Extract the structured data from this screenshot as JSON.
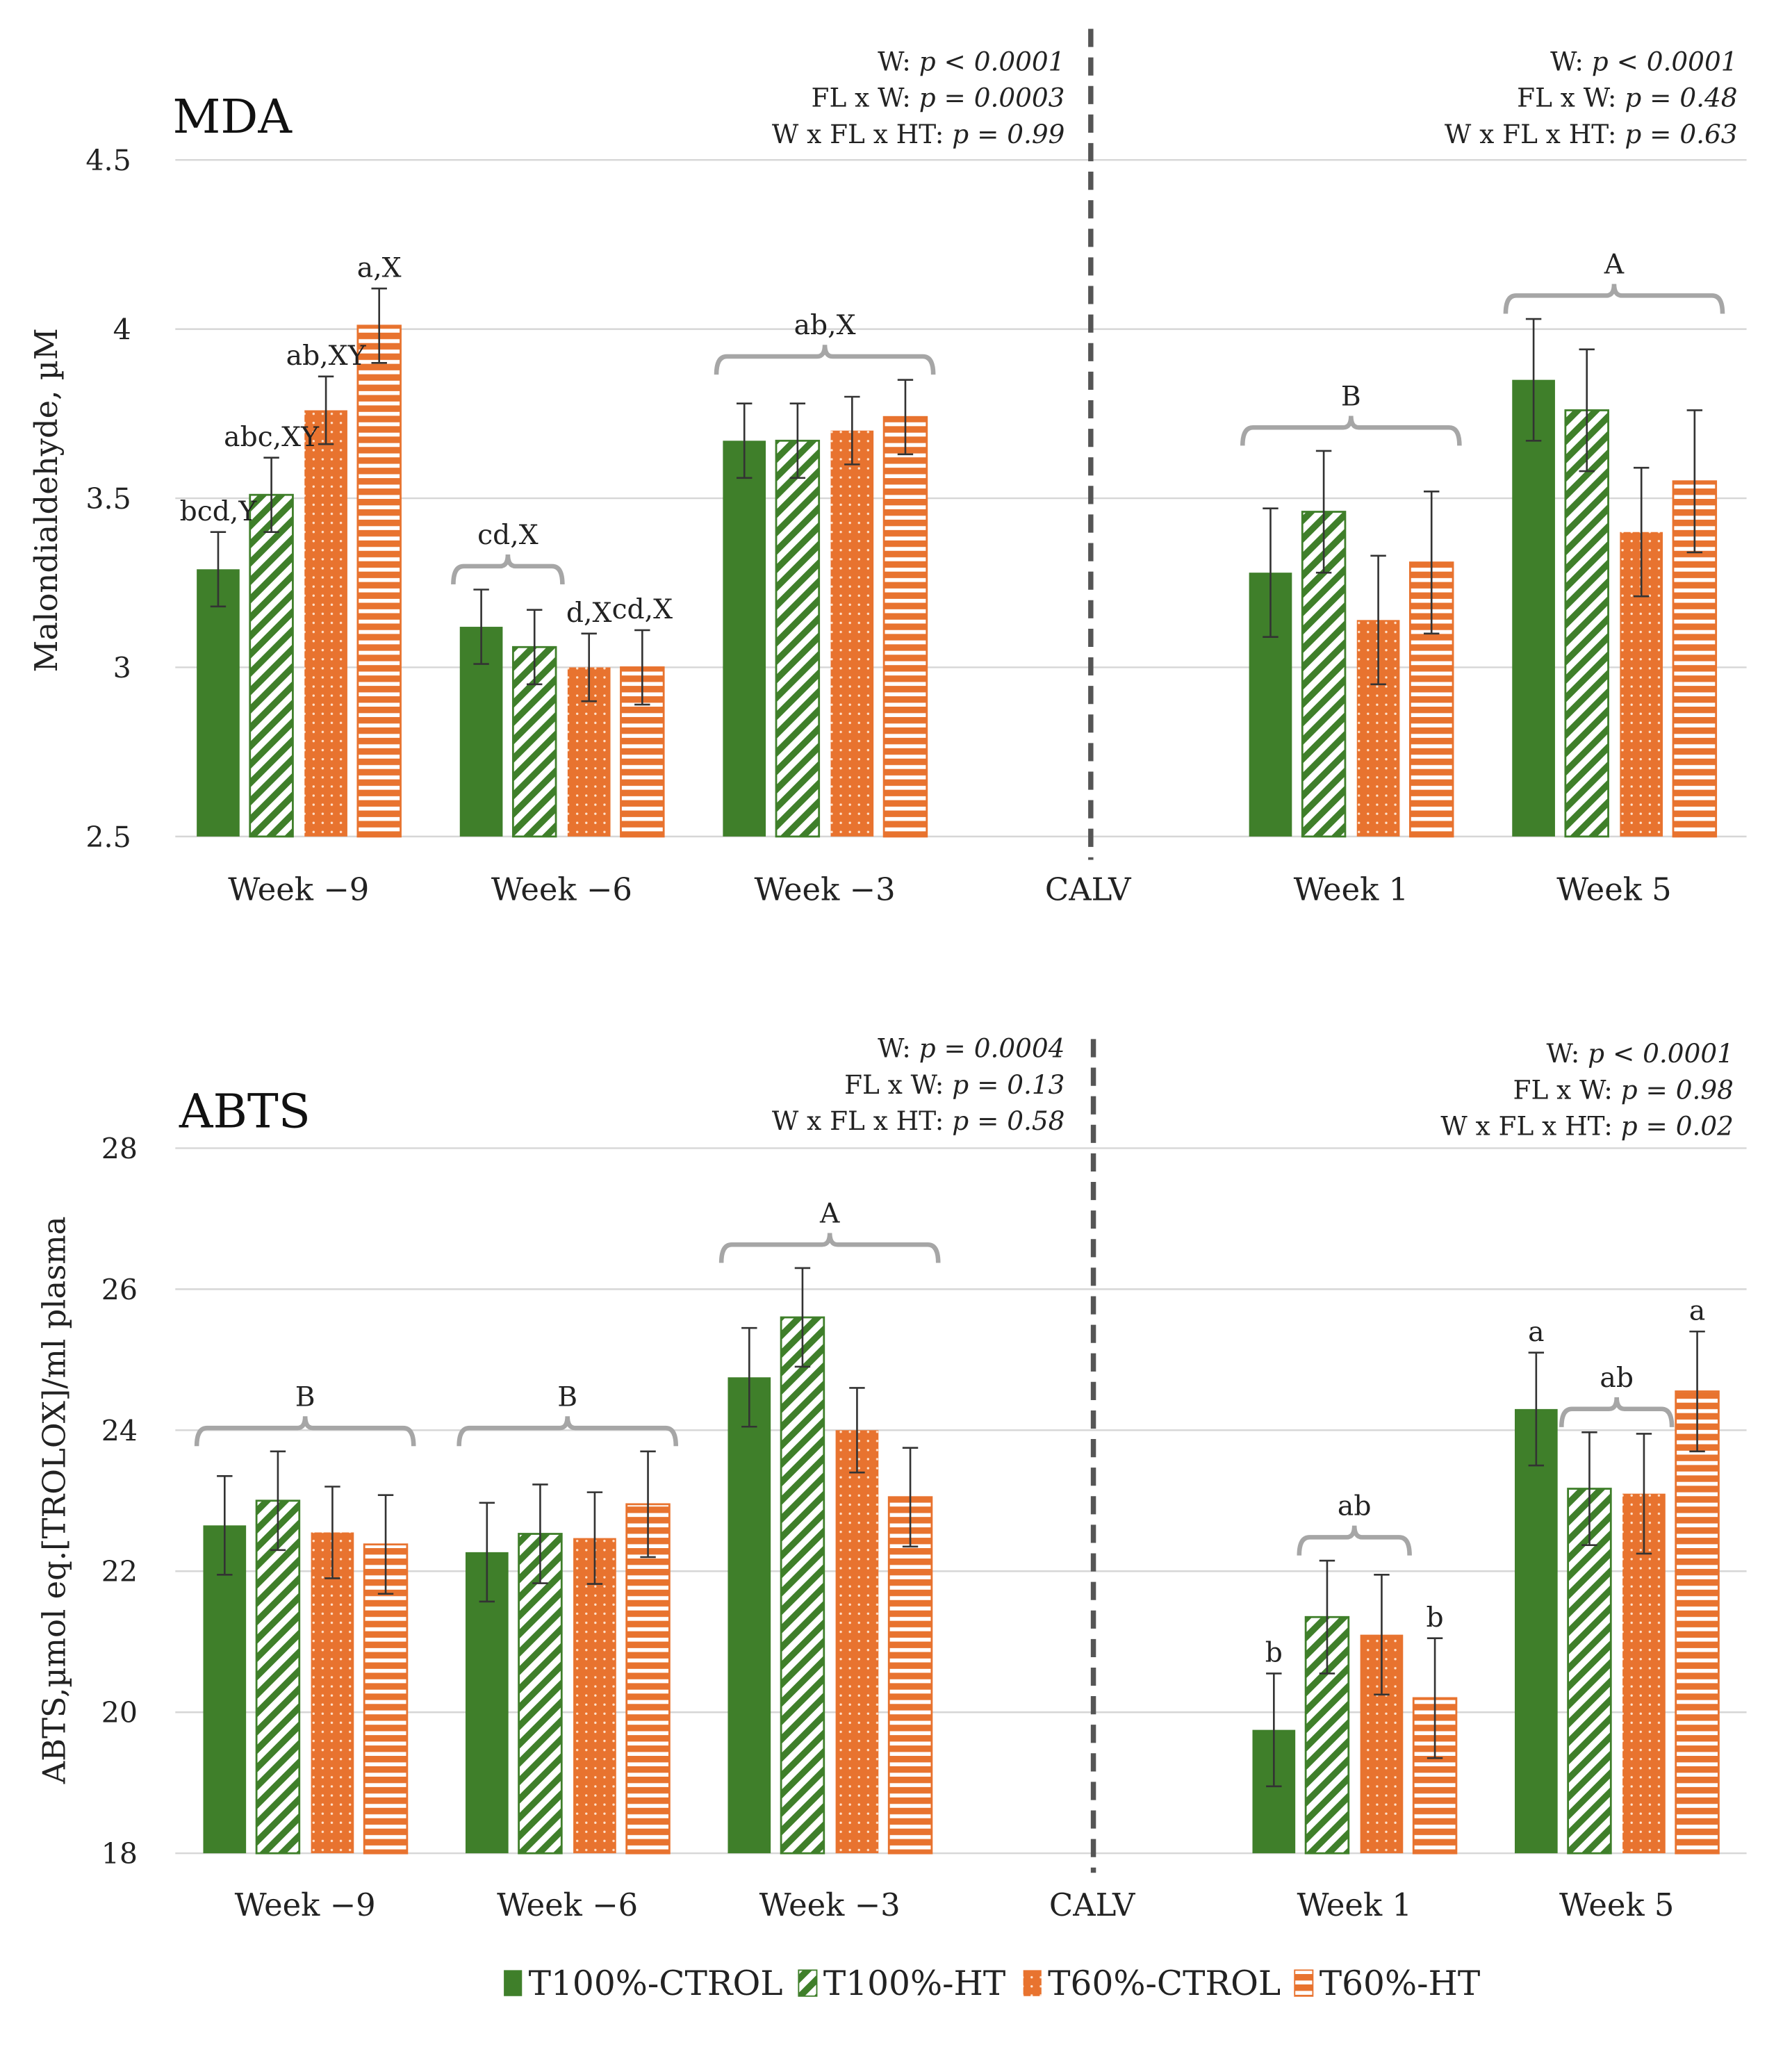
{
  "legend": [
    {
      "label": "T100%-CTROL",
      "color": "#3f7f2a",
      "pattern": "solid"
    },
    {
      "label": "T100%-HT",
      "color": "#3f7f2a",
      "pattern": "diagonal-stripes"
    },
    {
      "label": "T60%-CTROL",
      "color": "#e8732f",
      "pattern": "dots"
    },
    {
      "label": "T60%-HT",
      "color": "#e8732f",
      "pattern": "horizontal-stripes"
    }
  ],
  "chart_data": [
    {
      "type": "bar",
      "title": "MDA",
      "ylabel": "Malondialdehyde, µM",
      "ylim": [
        2.5,
        4.5
      ],
      "yticks": [
        "2.5",
        "3",
        "3.5",
        "4",
        "4.5"
      ],
      "grid": true,
      "categories": [
        "Week −9",
        "Week −6",
        "Week −3",
        "CALV",
        "Week 1",
        "Week 5"
      ],
      "series": [
        {
          "name": "T100%-CTROL",
          "values": [
            3.29,
            3.12,
            3.67,
            null,
            3.28,
            3.85
          ],
          "errors": [
            0.11,
            0.11,
            0.11,
            null,
            0.19,
            0.18
          ]
        },
        {
          "name": "T100%-HT",
          "values": [
            3.51,
            3.06,
            3.67,
            null,
            3.46,
            3.76
          ],
          "errors": [
            0.11,
            0.11,
            0.11,
            null,
            0.18,
            0.18
          ]
        },
        {
          "name": "T60%-CTROL",
          "values": [
            3.76,
            3.0,
            3.7,
            null,
            3.14,
            3.4
          ],
          "errors": [
            0.1,
            0.1,
            0.1,
            null,
            0.19,
            0.19
          ]
        },
        {
          "name": "T60%-HT",
          "values": [
            4.01,
            3.0,
            3.74,
            null,
            3.31,
            3.55
          ],
          "errors": [
            0.11,
            0.11,
            0.11,
            null,
            0.21,
            0.21
          ]
        }
      ],
      "annotations": [
        {
          "category": 0,
          "bars": [
            0
          ],
          "text": "bcd,Y"
        },
        {
          "category": 0,
          "bars": [
            1
          ],
          "text": "abc,XY"
        },
        {
          "category": 0,
          "bars": [
            2
          ],
          "text": "ab,XY"
        },
        {
          "category": 0,
          "bars": [
            3
          ],
          "text": "a,X"
        },
        {
          "category": 1,
          "bars": [
            0,
            1
          ],
          "text": "cd,X"
        },
        {
          "category": 1,
          "bars": [
            2
          ],
          "text": "d,X"
        },
        {
          "category": 1,
          "bars": [
            3
          ],
          "text": "cd,X"
        },
        {
          "category": 2,
          "bars": [
            0,
            1,
            2,
            3
          ],
          "text": "ab,X"
        },
        {
          "category": 4,
          "bars": [
            0,
            1,
            2,
            3
          ],
          "text": "B"
        },
        {
          "category": 5,
          "bars": [
            0,
            1,
            2,
            3
          ],
          "text": "A"
        }
      ],
      "stats": {
        "prepartum": [
          {
            "label": "W: ",
            "value": "p < 0.0001"
          },
          {
            "label": "FL x W: ",
            "value": "p = 0.0003"
          },
          {
            "label": "W x FL x HT: ",
            "value": "p = 0.99"
          }
        ],
        "postpartum": [
          {
            "label": "W: ",
            "value": "p < 0.0001"
          },
          {
            "label": "FL x W: ",
            "value": "p = 0.48"
          },
          {
            "label": "W x FL x HT: ",
            "value": "p = 0.63"
          }
        ]
      }
    },
    {
      "type": "bar",
      "title": "ABTS",
      "ylabel": "ABTS,µmol eq.[TROLOX]/ml plasma",
      "ylim": [
        18,
        28
      ],
      "yticks": [
        "18",
        "20",
        "22",
        "24",
        "26",
        "28"
      ],
      "grid": true,
      "categories": [
        "Week −9",
        "Week −6",
        "Week −3",
        "CALV",
        "Week 1",
        "Week 5"
      ],
      "series": [
        {
          "name": "T100%-CTROL",
          "values": [
            22.65,
            22.27,
            24.75,
            null,
            19.75,
            24.3
          ],
          "errors": [
            0.7,
            0.7,
            0.7,
            null,
            0.8,
            0.8
          ]
        },
        {
          "name": "T100%-HT",
          "values": [
            23.0,
            22.53,
            25.6,
            null,
            21.35,
            23.17
          ],
          "errors": [
            0.7,
            0.7,
            0.7,
            null,
            0.8,
            0.8
          ]
        },
        {
          "name": "T60%-CTROL",
          "values": [
            22.55,
            22.47,
            24.0,
            null,
            21.1,
            23.1
          ],
          "errors": [
            0.65,
            0.65,
            0.6,
            null,
            0.85,
            0.85
          ]
        },
        {
          "name": "T60%-HT",
          "values": [
            22.38,
            22.95,
            23.05,
            null,
            20.2,
            24.55
          ],
          "errors": [
            0.7,
            0.75,
            0.7,
            null,
            0.85,
            0.85
          ]
        }
      ],
      "annotations": [
        {
          "category": 0,
          "bars": [
            0,
            1,
            2,
            3
          ],
          "text": "B"
        },
        {
          "category": 1,
          "bars": [
            0,
            1,
            2,
            3
          ],
          "text": "B"
        },
        {
          "category": 2,
          "bars": [
            0,
            1,
            2,
            3
          ],
          "text": "A"
        },
        {
          "category": 4,
          "bars": [
            0
          ],
          "text": "b"
        },
        {
          "category": 4,
          "bars": [
            1,
            2
          ],
          "text": "ab"
        },
        {
          "category": 4,
          "bars": [
            3
          ],
          "text": "b"
        },
        {
          "category": 5,
          "bars": [
            0
          ],
          "text": "a"
        },
        {
          "category": 5,
          "bars": [
            1,
            2
          ],
          "text": "ab"
        },
        {
          "category": 5,
          "bars": [
            3
          ],
          "text": "a"
        }
      ],
      "stats": {
        "prepartum": [
          {
            "label": "W: ",
            "value": "p = 0.0004"
          },
          {
            "label": "FL x W: ",
            "value": "p = 0.13"
          },
          {
            "label": "W x FL x HT: ",
            "value": "p = 0.58"
          }
        ],
        "postpartum": [
          {
            "label": "W: ",
            "value": "p < 0.0001"
          },
          {
            "label": "FL x W: ",
            "value": "p = 0.98"
          },
          {
            "label": "W x FL x HT: ",
            "value": "p = 0.02"
          }
        ]
      }
    }
  ]
}
